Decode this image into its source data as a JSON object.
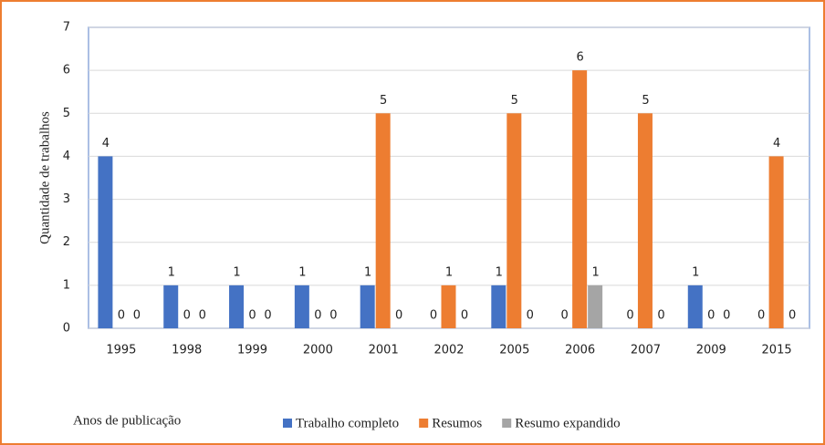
{
  "chart_data": {
    "type": "bar",
    "x_label": "Anos de publicação",
    "y_label": "Quantidade de trabalhos",
    "categories": [
      "1995",
      "1998",
      "1999",
      "2000",
      "2001",
      "2002",
      "2005",
      "2006",
      "2007",
      "2009",
      "2015"
    ],
    "series": [
      {
        "name": "Trabalho completo",
        "color": "#4472c4",
        "values": [
          4,
          1,
          1,
          1,
          1,
          0,
          1,
          0,
          0,
          1,
          0
        ]
      },
      {
        "name": "Resumos",
        "color": "#ed7d31",
        "values": [
          0,
          0,
          0,
          0,
          5,
          1,
          5,
          6,
          5,
          0,
          4
        ]
      },
      {
        "name": "Resumo expandido",
        "color": "#a5a5a5",
        "values": [
          0,
          0,
          0,
          0,
          0,
          0,
          0,
          1,
          0,
          0,
          0
        ]
      }
    ],
    "ylim": [
      0,
      7
    ],
    "yticks": [
      0,
      1,
      2,
      3,
      4,
      5,
      6,
      7
    ],
    "grid": true,
    "legend": "bottom",
    "data_labels": true
  }
}
